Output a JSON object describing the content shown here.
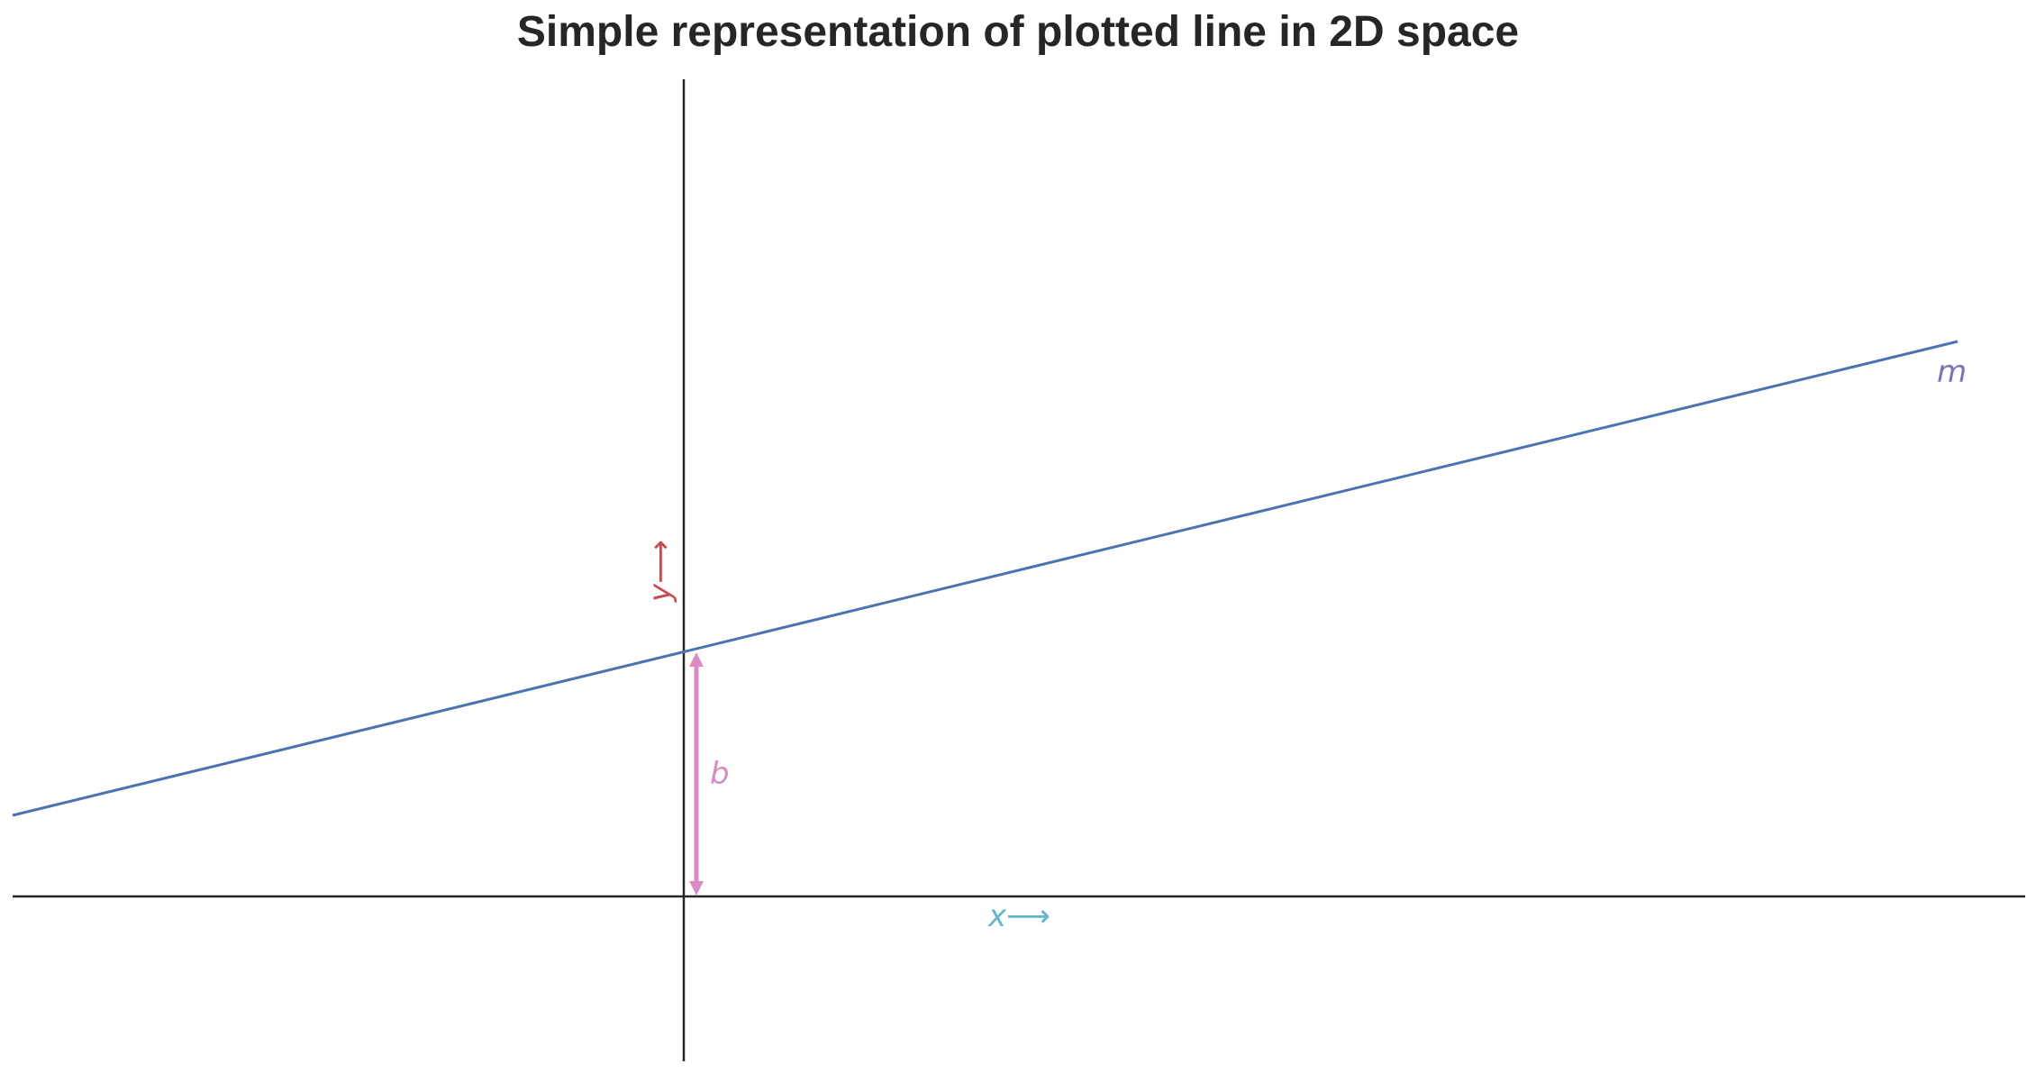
{
  "title": "Simple representation of plotted line in 2D space",
  "labels": {
    "x_axis": "x⟶",
    "y_axis": "y⟶",
    "slope": "m",
    "intercept": "b"
  },
  "colors": {
    "axes": "#262626",
    "line": "#4c72b0",
    "slope_label": "#8172b3",
    "intercept": "#da8bc3",
    "x_label": "#64b5cd",
    "y_label": "#c44e52"
  }
}
